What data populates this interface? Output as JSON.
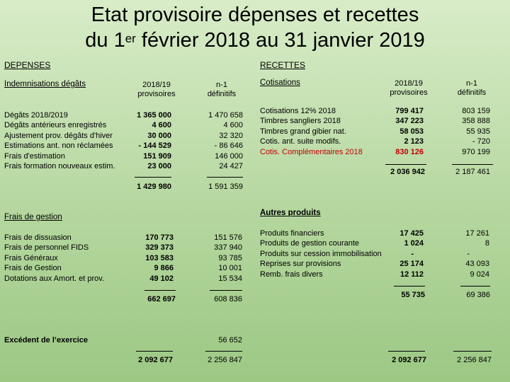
{
  "title": {
    "line1": "Etat provisoire dépenses et recettes",
    "line2_prefix": "du 1",
    "line2_sup": "er",
    "line2_suffix": " février 2018 au 31 janvier 2019"
  },
  "depenses": {
    "heading": "DEPENSES",
    "indemnisations": {
      "heading": "Indemnisations dégâts",
      "col1_header": [
        "2018/19",
        "provisoires"
      ],
      "col2_header": [
        "n-1",
        "définitifs"
      ],
      "rows": [
        {
          "label": "Dégâts 2018/2019",
          "v1": "1 365 000",
          "v2": "1 470 658"
        },
        {
          "label": "Dégâts antérieurs enregistrés",
          "v1": "4 600",
          "v2": "4 600"
        },
        {
          "label": "Ajustement prov. dégâts d'hiver",
          "v1": "30 000",
          "v2": "32 320"
        },
        {
          "label": "Estimations ant. non réclamées",
          "v1": "- 144 529",
          "v2": "- 86 646"
        },
        {
          "label": "Frais d'estimation",
          "v1": "151 909",
          "v2": "146 000"
        },
        {
          "label": "Frais formation nouveaux estim.",
          "v1": "23 000",
          "v2": "24 427"
        }
      ],
      "total1": "1 429 980",
      "total2": "1 591 359"
    },
    "gestion": {
      "heading": "Frais de gestion",
      "rows": [
        {
          "label": "Frais de dissuasion",
          "v1": "170 773",
          "v2": "151 576"
        },
        {
          "label": "Frais de personnel FIDS",
          "v1": "329 373",
          "v2": "337 940"
        },
        {
          "label": "Frais Généraux",
          "v1": "103 583",
          "v2": "93 785"
        },
        {
          "label": "Frais de Gestion",
          "v1": "9 866",
          "v2": "10 001"
        },
        {
          "label": "Dotations aux Amort. et prov.",
          "v1": "49 102",
          "v2": "15 534"
        }
      ],
      "total1": "662 697",
      "total2": "608 836"
    },
    "excedent": {
      "label": "Excédent de l’exercice",
      "v2": "56 652"
    },
    "grand_total1": "2 092 677",
    "grand_total2": "2 256 847"
  },
  "recettes": {
    "heading": "RECETTES",
    "cotisations": {
      "heading": "Cotisations",
      "col1_header": [
        "2018/19",
        "provisoires"
      ],
      "col2_header": [
        "n-1",
        "définitifs"
      ],
      "rows": [
        {
          "label": "Cotisations 12% 2018",
          "v1": "799 417",
          "v2": "803 159"
        },
        {
          "label": "Timbres sangliers 2018",
          "v1": "347 223",
          "v2": "358 888"
        },
        {
          "label": "Timbres grand gibier nat.",
          "v1": "58 053",
          "v2": "55 935"
        },
        {
          "label": "Cotis. ant. suite modifs.",
          "v1": "2 123",
          "v2": "- 720"
        },
        {
          "label": "Cotis. Complémentaires 2018",
          "v1": "830 126",
          "v2": "970 199"
        }
      ],
      "total1": "2 036 942",
      "total2": "2 187 461"
    },
    "autres": {
      "heading": "Autres produits",
      "rows": [
        {
          "label": "Produits financiers",
          "v1": "17 425",
          "v2": "17 261"
        },
        {
          "label": "Produits de gestion courante",
          "v1": "1 024",
          "v2": "8"
        },
        {
          "label": "Produits sur cession immobilisation",
          "v1": "-",
          "v2": "-"
        },
        {
          "label": "Reprises sur provisions",
          "v1": "25 174",
          "v2": "43 093"
        },
        {
          "label": "Remb. frais divers",
          "v1": "12 112",
          "v2": "9 024"
        }
      ],
      "total1": "55 735",
      "total2": "69 386"
    },
    "grand_total1": "2 092 677",
    "grand_total2": "2 256 847"
  },
  "colors": {
    "background_top": "#d8ecc8",
    "background_bottom": "#9cc884",
    "highlight": "#c00000"
  }
}
